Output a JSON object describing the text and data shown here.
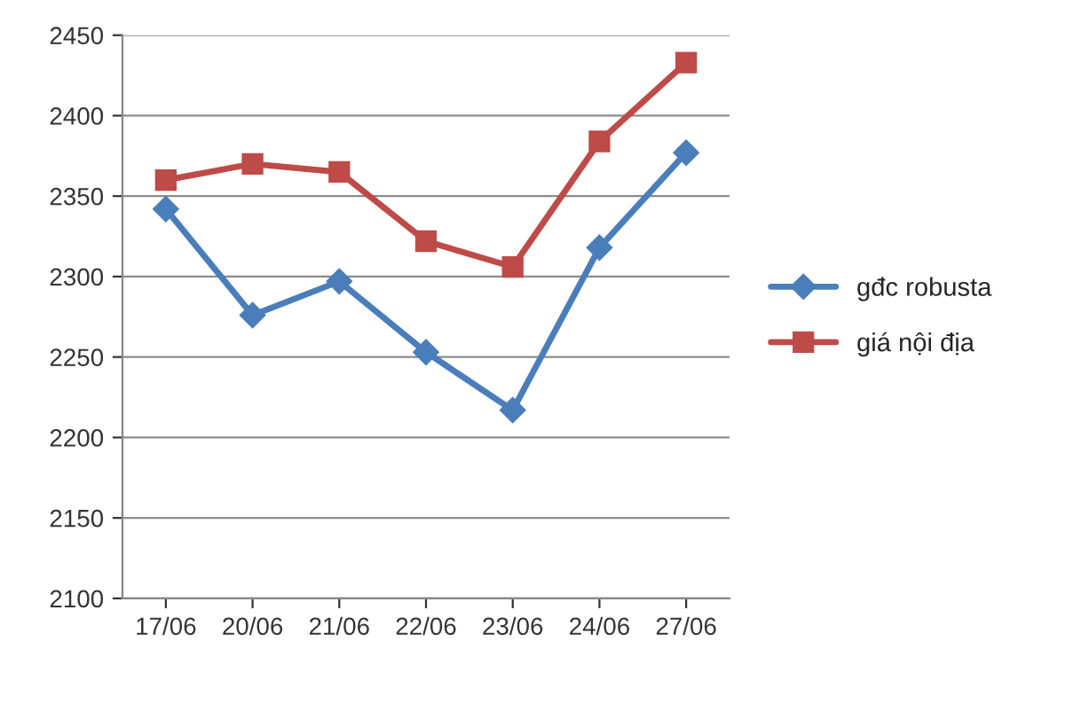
{
  "chart_data": {
    "type": "line",
    "categories": [
      "17/06",
      "20/06",
      "21/06",
      "22/06",
      "23/06",
      "24/06",
      "27/06"
    ],
    "series": [
      {
        "name": "gđc robusta",
        "color": "#4a7ebb",
        "marker": "diamond",
        "values": [
          2342,
          2276,
          2297,
          2253,
          2217,
          2318,
          2377
        ]
      },
      {
        "name": "giá nội địa",
        "color": "#be4b48",
        "marker": "square",
        "values": [
          2360,
          2370,
          2365,
          2322,
          2306,
          2384,
          2433
        ]
      }
    ],
    "ylim": [
      2100,
      2450
    ],
    "yticks": [
      2100,
      2150,
      2200,
      2250,
      2300,
      2350,
      2400,
      2450
    ],
    "grid": "y",
    "legend": "right"
  }
}
